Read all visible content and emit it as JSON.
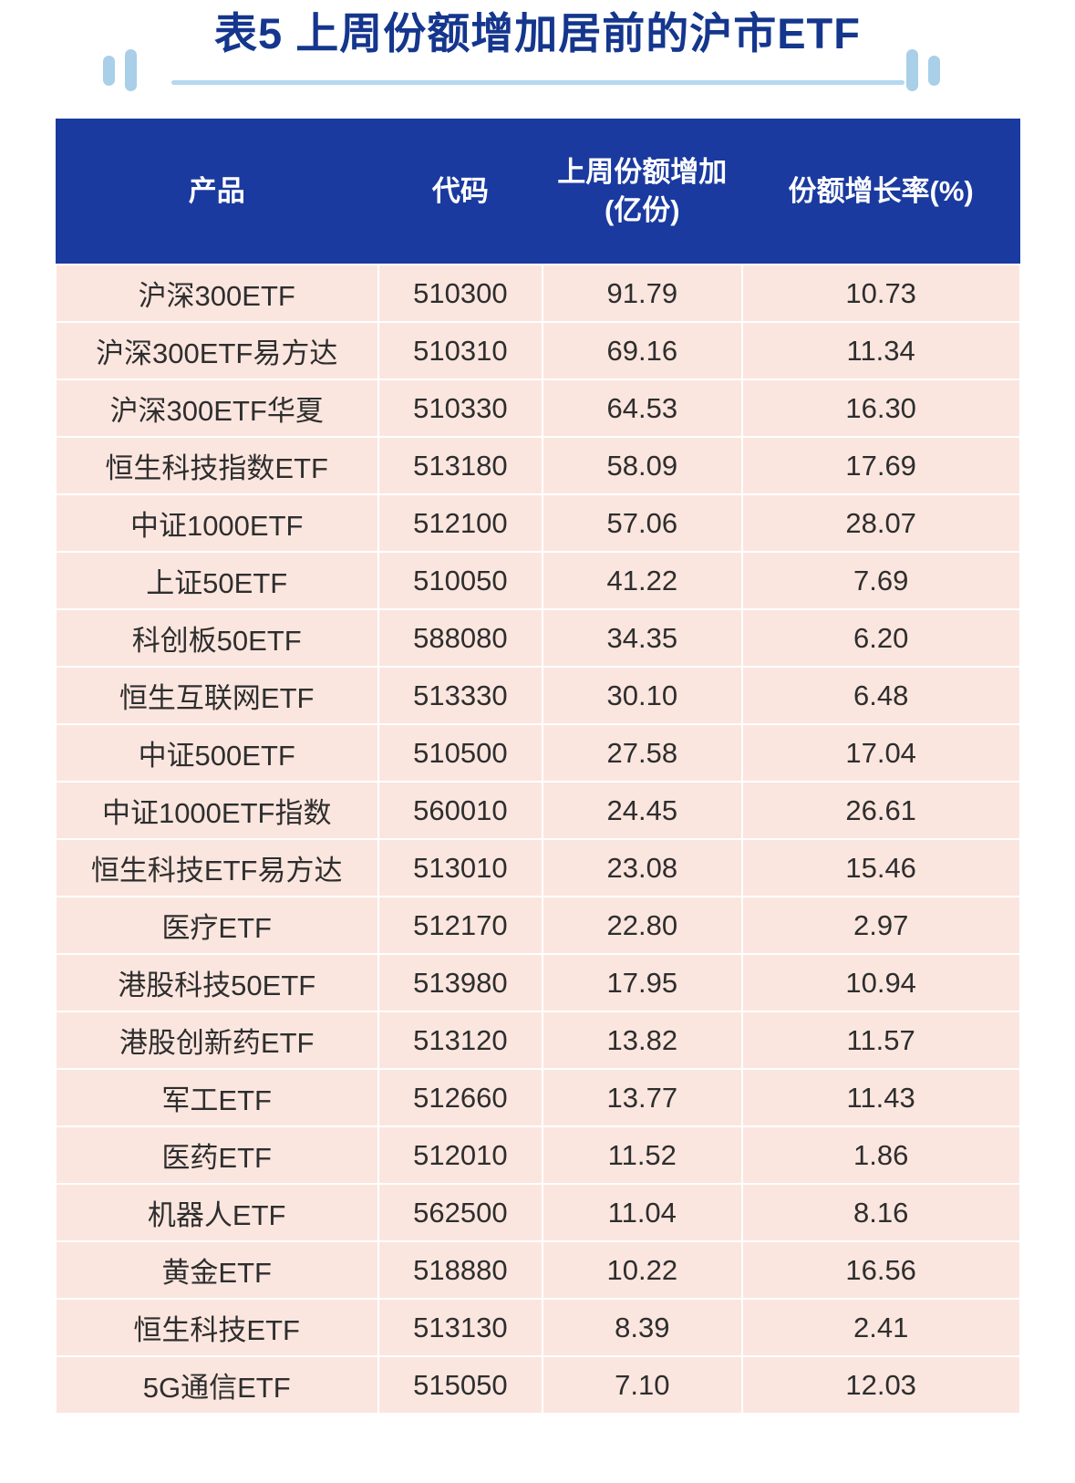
{
  "title": "表5 上周份额增加居前的沪市ETF",
  "colors": {
    "title_text": "#15368d",
    "header_bg": "#1a3aa0",
    "header_text": "#ffffff",
    "row_bg": "#fbe6df",
    "body_text": "#2e2e2e",
    "accent_bars": "#a9cfe9",
    "underline": "#b4d8f0"
  },
  "header": {
    "product": "产品",
    "code": "代码",
    "increase_line1": "上周份额增加",
    "increase_line2": "(亿份)",
    "growth": "份额增长率(%)"
  },
  "chart_data": {
    "type": "table",
    "title": "表5 上周份额增加居前的沪市ETF",
    "columns": [
      "产品",
      "代码",
      "上周份额增加(亿份)",
      "份额增长率(%)"
    ],
    "rows": [
      [
        "沪深300ETF",
        "510300",
        "91.79",
        "10.73"
      ],
      [
        "沪深300ETF易方达",
        "510310",
        "69.16",
        "11.34"
      ],
      [
        "沪深300ETF华夏",
        "510330",
        "64.53",
        "16.30"
      ],
      [
        "恒生科技指数ETF",
        "513180",
        "58.09",
        "17.69"
      ],
      [
        "中证1000ETF",
        "512100",
        "57.06",
        "28.07"
      ],
      [
        "上证50ETF",
        "510050",
        "41.22",
        "7.69"
      ],
      [
        "科创板50ETF",
        "588080",
        "34.35",
        "6.20"
      ],
      [
        "恒生互联网ETF",
        "513330",
        "30.10",
        "6.48"
      ],
      [
        "中证500ETF",
        "510500",
        "27.58",
        "17.04"
      ],
      [
        "中证1000ETF指数",
        "560010",
        "24.45",
        "26.61"
      ],
      [
        "恒生科技ETF易方达",
        "513010",
        "23.08",
        "15.46"
      ],
      [
        "医疗ETF",
        "512170",
        "22.80",
        "2.97"
      ],
      [
        "港股科技50ETF",
        "513980",
        "17.95",
        "10.94"
      ],
      [
        "港股创新药ETF",
        "513120",
        "13.82",
        "11.57"
      ],
      [
        "军工ETF",
        "512660",
        "13.77",
        "11.43"
      ],
      [
        "医药ETF",
        "512010",
        "11.52",
        "1.86"
      ],
      [
        "机器人ETF",
        "562500",
        "11.04",
        "8.16"
      ],
      [
        "黄金ETF",
        "518880",
        "10.22",
        "16.56"
      ],
      [
        "恒生科技ETF",
        "513130",
        "8.39",
        "2.41"
      ],
      [
        "5G通信ETF",
        "515050",
        "7.10",
        "12.03"
      ]
    ]
  }
}
